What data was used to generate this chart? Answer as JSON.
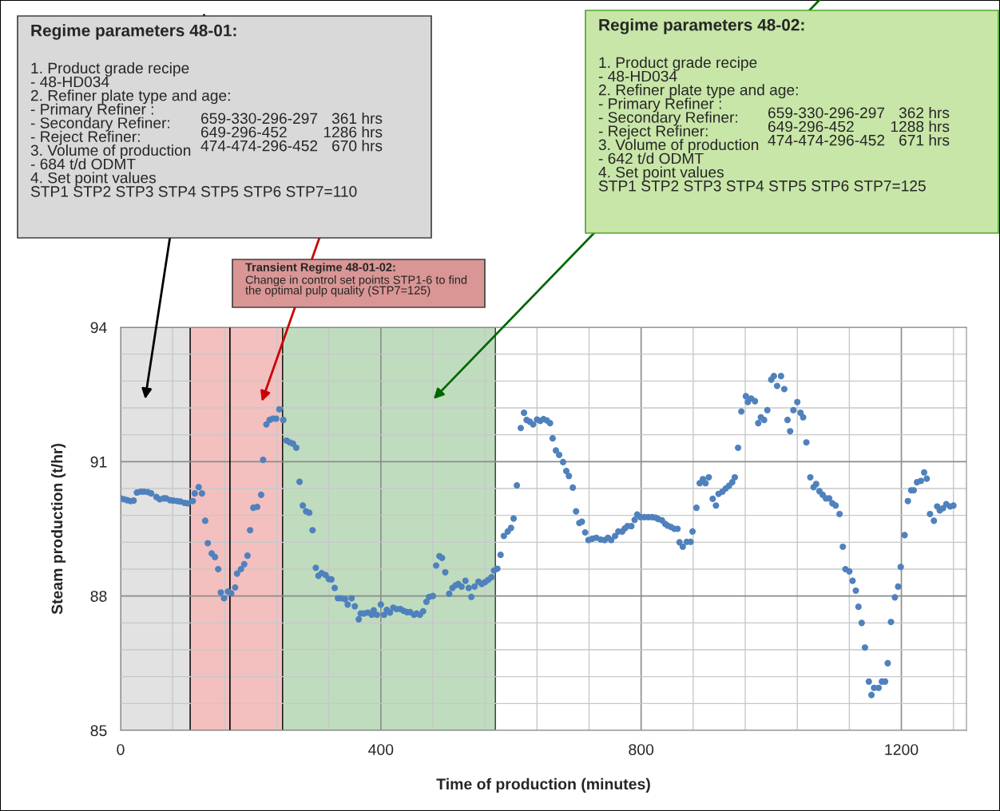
{
  "chart_data": {
    "type": "scatter",
    "xlabel": "Time of production (minutes)",
    "ylabel": "Steam production (t/hr)",
    "xlim": [
      0,
      1300
    ],
    "ylim": [
      85,
      94
    ],
    "xticks": [
      0,
      {
        "value": 80,
        "label": null
      },
      {
        "value": 160,
        "label": null
      },
      {
        "value": 240,
        "label": null
      },
      {
        "value": 320,
        "label": null
      },
      400,
      {
        "value": 480,
        "label": null
      },
      {
        "value": 560,
        "label": null
      },
      {
        "value": 640,
        "label": null
      },
      {
        "value": 720,
        "label": null
      },
      800,
      {
        "value": 880,
        "label": null
      },
      {
        "value": 960,
        "label": null
      },
      {
        "value": 1040,
        "label": null
      },
      {
        "value": 1120,
        "label": null
      },
      1200,
      {
        "value": 1280,
        "label": null
      }
    ],
    "yticks": [
      85,
      {
        "value": 85.6,
        "label": null
      },
      {
        "value": 86.2,
        "label": null
      },
      {
        "value": 86.8,
        "label": null
      },
      {
        "value": 87.4,
        "label": null
      },
      88,
      {
        "value": 88.6,
        "label": null
      },
      {
        "value": 89.2,
        "label": null
      },
      {
        "value": 89.8,
        "label": null
      },
      {
        "value": 90.4,
        "label": null
      },
      91,
      {
        "value": 91.6,
        "label": null
      },
      {
        "value": 92.2,
        "label": null
      },
      {
        "value": 92.8,
        "label": null
      },
      {
        "value": 93.4,
        "label": null
      },
      94
    ],
    "grid": true,
    "marker": "circle",
    "bands": [
      {
        "axis": "x",
        "from": 0,
        "to": 107,
        "color": "#dcdcdc"
      },
      {
        "axis": "x",
        "from": 107,
        "to": 249,
        "color": "#f2b0b0"
      },
      {
        "axis": "x",
        "from": 249,
        "to": 576,
        "color": "#b0d4b0"
      }
    ],
    "ref_lines": [
      {
        "axis": "x",
        "value": 168,
        "color": "#000000"
      }
    ],
    "annotations": [
      "Regime parameters 48-01:",
      "1. Product grade recipe\n- 48-HD034\n2. Refiner plate type and age:\n- Primary Refiner :\n- Secondary Refiner:\n- Reject Refiner:\n3. Volume of production\n- 684 t/d ODMT\n4. Set point values\nSTP1 STP2 STP3 STP4 STP5 STP6 STP7=110",
      "659-330-296-297\n649-296-452\n474-474-296-452",
      "361 hrs\n1286 hrs\n670 hrs",
      "Transient Regime 48-01-02:",
      "Change in control set points STP1-6 to find\nthe optimal pulp quality (STP7=125)",
      "Regime parameters 48-02:",
      "1. Product grade recipe\n- 48-HD034\n2. Refiner plate type and age:\n- Primary Refiner :\n- Secondary Refiner:\n- Reject Refiner:\n3. Volume of production\n- 642 t/d ODMT\n4. Set point values\nSTP1 STP2 STP3 STP4 STP5 STP6 STP7=125",
      "659-330-296-297\n649-296-452\n474-474-296-452",
      "362 hrs\n1288 hrs\n671 hrs"
    ],
    "series": [
      {
        "color": "#4f81bd",
        "x": [
          0,
          5,
          10,
          15,
          20,
          25,
          31,
          36,
          42,
          47,
          55,
          60,
          66,
          70,
          76,
          81,
          87,
          92,
          98,
          103,
          111,
          114,
          120,
          125,
          130,
          134,
          140,
          145,
          150,
          154,
          159,
          165,
          170,
          176,
          179,
          185,
          190,
          195,
          199,
          204,
          210,
          216,
          219,
          224,
          229,
          234,
          239,
          244,
          250,
          255,
          260,
          265,
          270,
          275,
          280,
          285,
          290,
          295,
          300,
          304,
          309,
          315,
          320,
          324,
          329,
          334,
          339,
          345,
          349,
          355,
          360,
          366,
          369,
          374,
          380,
          386,
          389,
          394,
          400,
          405,
          409,
          414,
          419,
          424,
          430,
          435,
          440,
          445,
          451,
          455,
          460,
          465,
          470,
          474,
          480,
          485,
          490,
          494,
          499,
          505,
          510,
          515,
          519,
          524,
          530,
          535,
          539,
          544,
          550,
          555,
          560,
          565,
          570,
          574,
          579,
          584,
          589,
          595,
          600,
          604,
          609,
          615,
          620,
          624,
          629,
          634,
          640,
          645,
          650,
          655,
          660,
          664,
          669,
          674,
          680,
          685,
          689,
          695,
          700,
          705,
          709,
          714,
          719,
          725,
          731,
          738,
          744,
          749,
          754,
          760,
          765,
          771,
          775,
          779,
          785,
          790,
          794,
          799,
          805,
          811,
          817,
          822,
          826,
          832,
          837,
          841,
          846,
          851,
          856,
          859,
          864,
          870,
          876,
          879,
          885,
          890,
          895,
          899,
          904,
          910,
          915,
          919,
          925,
          930,
          935,
          940,
          944,
          949,
          954,
          961,
          964,
          969,
          975,
          980,
          984,
          989,
          994,
          1000,
          1004,
          1009,
          1015,
          1020,
          1025,
          1029,
          1034,
          1040,
          1045,
          1049,
          1054,
          1060,
          1065,
          1069,
          1074,
          1079,
          1084,
          1089,
          1094,
          1099,
          1105,
          1110,
          1114,
          1120,
          1125,
          1130,
          1134,
          1139,
          1144,
          1150,
          1154,
          1158,
          1165,
          1170,
          1175,
          1179,
          1184,
          1190,
          1195,
          1199,
          1205,
          1210,
          1215,
          1219,
          1224,
          1230,
          1235,
          1239,
          1244,
          1250,
          1255,
          1259,
          1264,
          1269,
          1275,
          1280
        ],
        "values": [
          90.18,
          90.16,
          90.14,
          90.12,
          90.13,
          90.31,
          90.33,
          90.33,
          90.32,
          90.29,
          90.21,
          90.16,
          90.18,
          90.18,
          90.14,
          90.13,
          90.12,
          90.11,
          90.08,
          90.07,
          90.12,
          90.29,
          90.43,
          90.29,
          89.68,
          89.18,
          88.95,
          88.87,
          88.6,
          88.08,
          87.95,
          88.1,
          88.06,
          88.19,
          88.5,
          88.6,
          88.71,
          88.9,
          89.47,
          89.97,
          89.99,
          90.26,
          91.04,
          91.83,
          91.93,
          91.96,
          91.96,
          92.17,
          91.93,
          91.47,
          91.43,
          91.4,
          91.31,
          90.55,
          90.02,
          89.89,
          89.86,
          89.47,
          88.63,
          88.45,
          88.51,
          88.47,
          88.38,
          88.37,
          88.18,
          87.95,
          87.95,
          87.93,
          87.81,
          87.95,
          87.77,
          87.48,
          87.61,
          87.61,
          87.63,
          87.58,
          87.68,
          87.58,
          87.81,
          87.58,
          87.69,
          87.63,
          87.74,
          87.71,
          87.71,
          87.67,
          87.64,
          87.64,
          87.58,
          87.61,
          87.58,
          87.66,
          87.87,
          87.98,
          88.0,
          88.68,
          88.89,
          88.85,
          88.53,
          88.05,
          88.18,
          88.24,
          88.27,
          88.21,
          88.34,
          88.18,
          87.98,
          88.21,
          88.32,
          88.27,
          88.31,
          88.36,
          88.42,
          88.57,
          88.61,
          88.92,
          89.34,
          89.44,
          89.52,
          89.73,
          90.47,
          91.75,
          92.09,
          91.93,
          91.89,
          91.83,
          91.94,
          91.91,
          91.95,
          91.92,
          91.86,
          91.52,
          91.25,
          91.15,
          90.99,
          90.79,
          90.68,
          90.42,
          89.89,
          89.63,
          89.66,
          89.42,
          89.25,
          89.28,
          89.3,
          89.26,
          89.25,
          89.3,
          89.25,
          89.34,
          89.44,
          89.44,
          89.51,
          89.56,
          89.56,
          89.7,
          89.82,
          89.76,
          89.76,
          89.76,
          89.76,
          89.75,
          89.72,
          89.69,
          89.61,
          89.57,
          89.54,
          89.5,
          89.5,
          89.2,
          89.1,
          89.21,
          89.21,
          89.44,
          89.97,
          90.52,
          90.61,
          90.52,
          90.65,
          90.17,
          90.02,
          90.28,
          90.33,
          90.4,
          90.46,
          90.54,
          90.65,
          91.31,
          92.12,
          92.46,
          92.33,
          92.41,
          92.35,
          91.86,
          91.99,
          91.93,
          92.15,
          92.83,
          92.91,
          92.69,
          92.91,
          92.62,
          91.93,
          91.68,
          92.15,
          92.33,
          92.09,
          91.99,
          91.43,
          90.65,
          90.43,
          90.5,
          90.34,
          90.26,
          90.18,
          90.18,
          90.07,
          90.02,
          89.83,
          89.1,
          88.6,
          88.55,
          88.34,
          88.12,
          87.76,
          87.4,
          86.85,
          86.09,
          85.79,
          85.95,
          85.95,
          86.09,
          86.09,
          86.5,
          87.42,
          87.97,
          88.21,
          88.65,
          89.36,
          90.12,
          90.36,
          90.36,
          90.54,
          90.57,
          90.76,
          90.62,
          89.83,
          89.68,
          90.0,
          89.91,
          89.96,
          90.05,
          90.0,
          90.02
        ]
      }
    ]
  }
}
